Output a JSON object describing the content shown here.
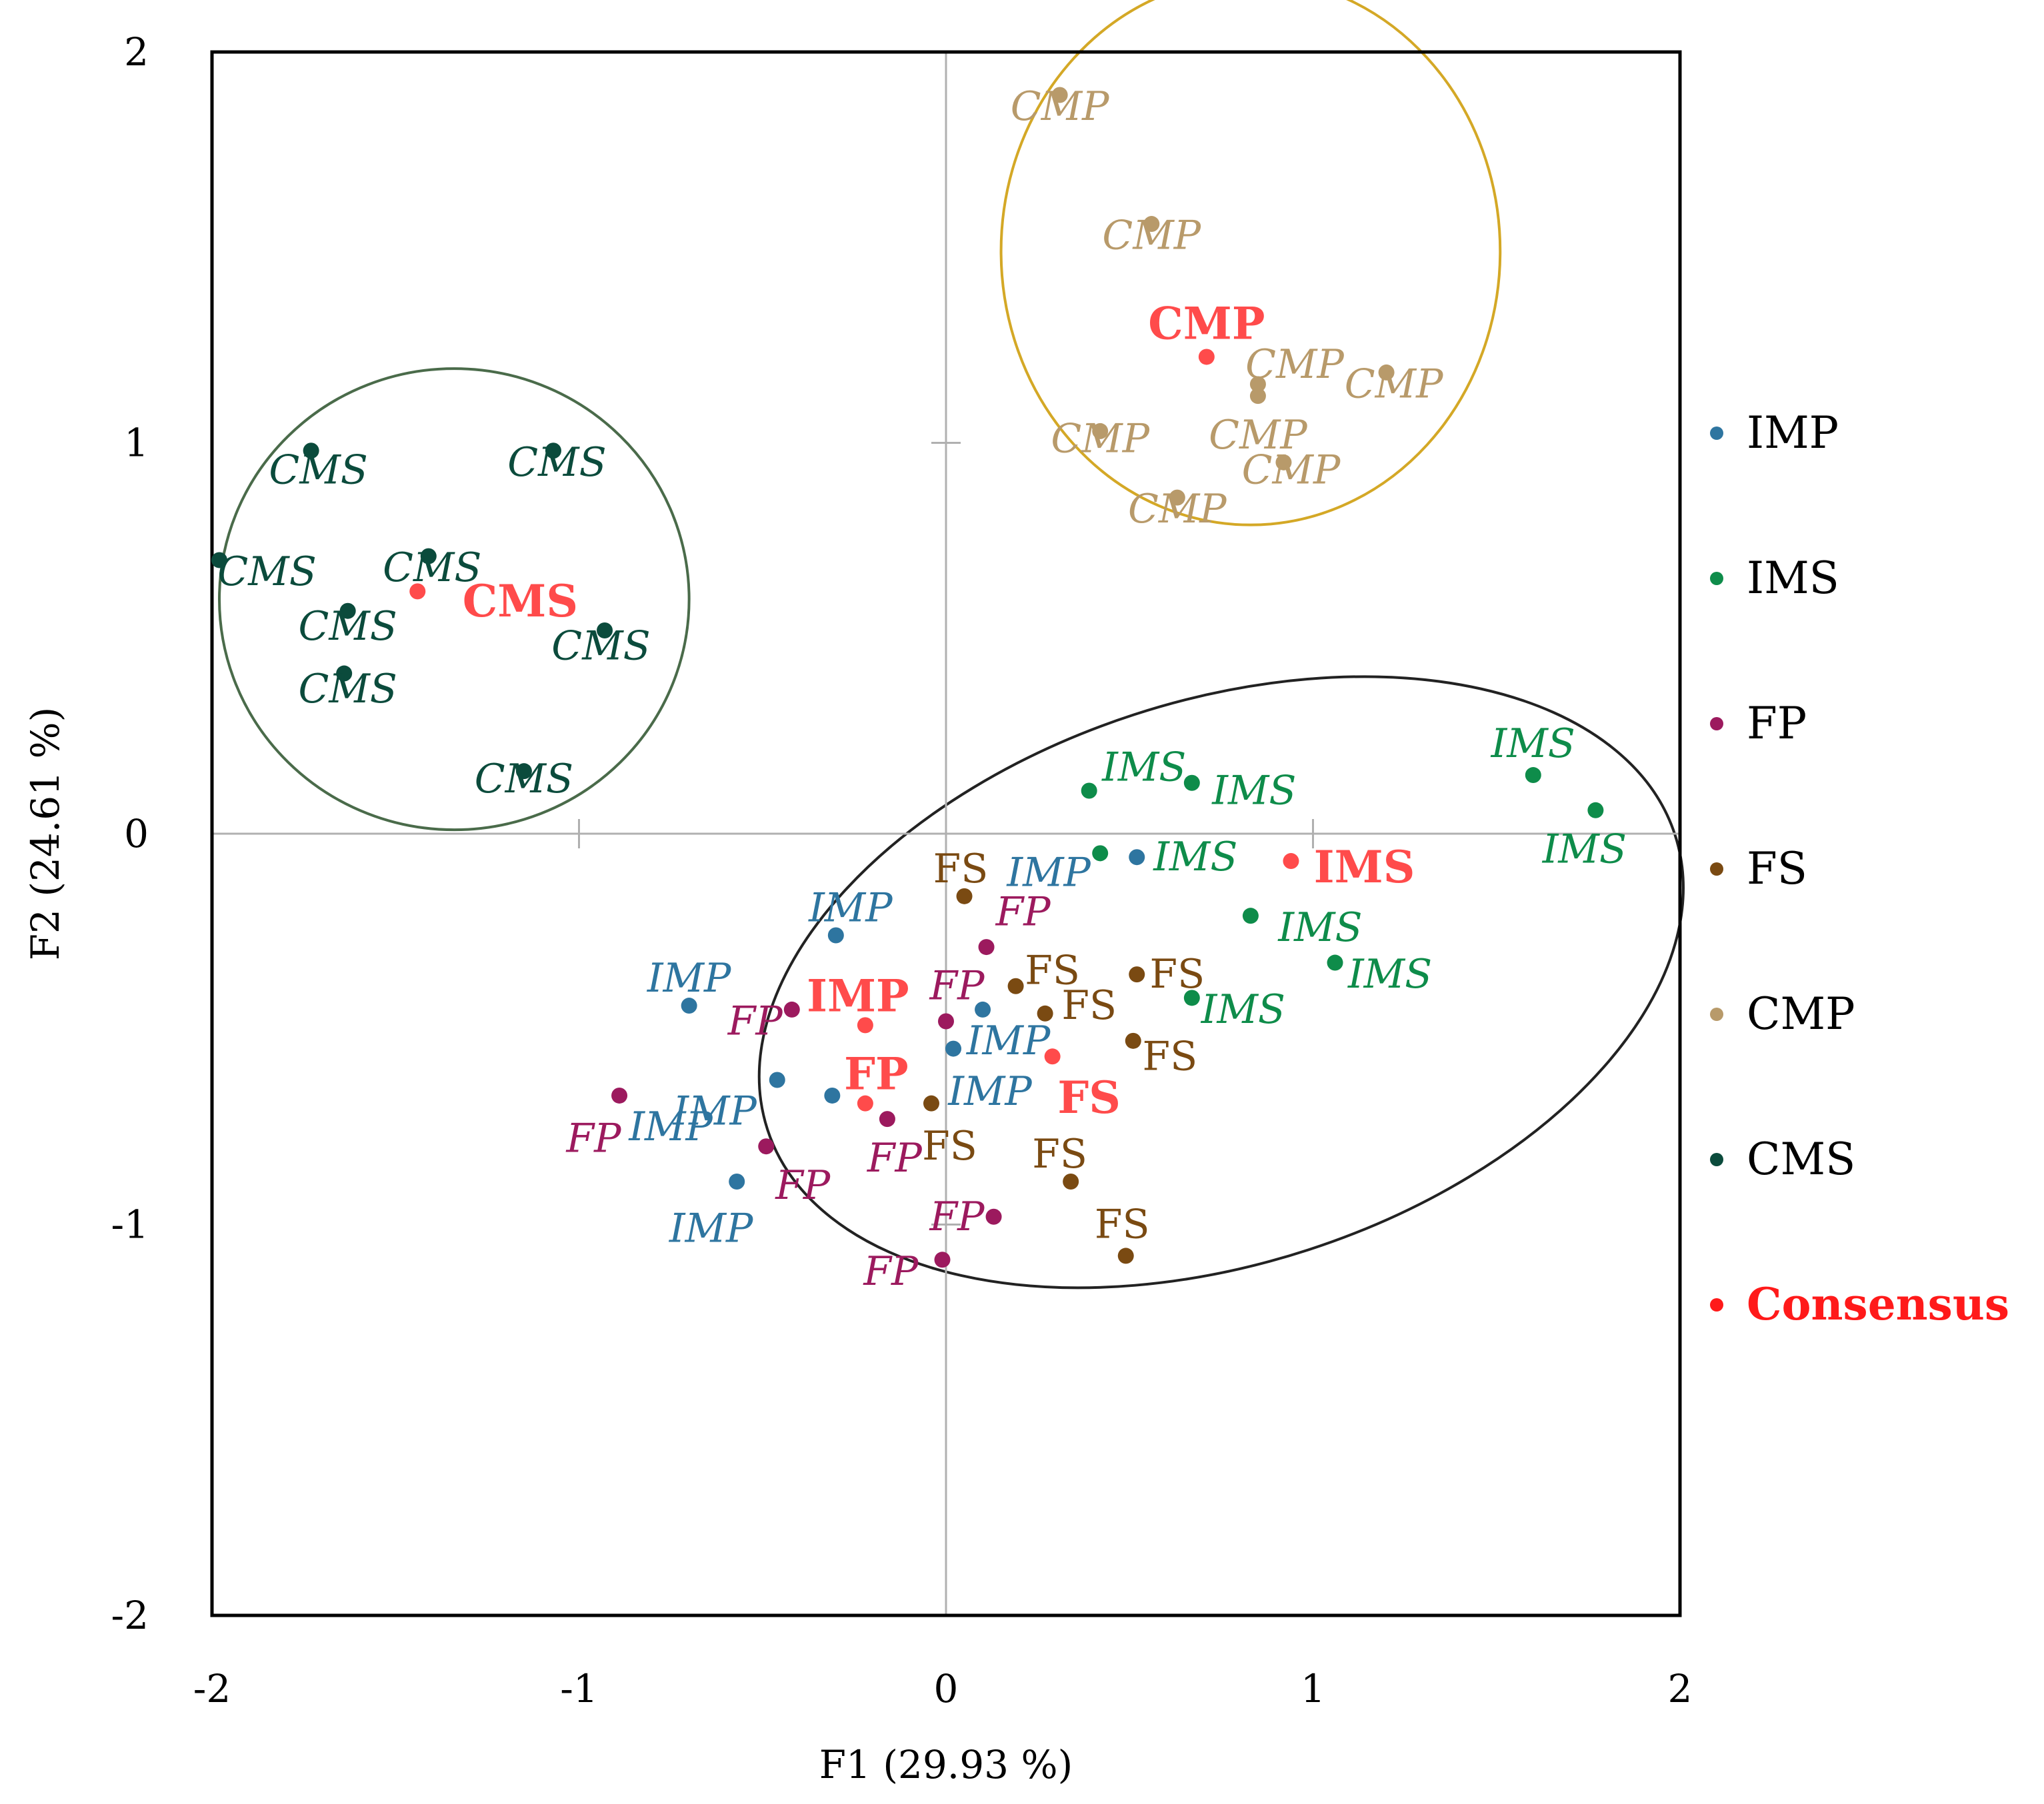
{
  "chart_data": {
    "type": "scatter",
    "title": "",
    "xlabel": "F1 (29.93 %)",
    "ylabel": "F2 (24.61 %)",
    "xlim": [
      -2,
      2
    ],
    "ylim": [
      -2,
      2
    ],
    "xticks": [
      "-2",
      "-1",
      "0",
      "1",
      "2"
    ],
    "yticks": [
      "2",
      "1",
      "0",
      "-1",
      "-2"
    ],
    "grid": false,
    "legend_position": "right",
    "series": [
      {
        "name": "IMP",
        "color": "#2e75a0",
        "italic": true,
        "points": [
          {
            "x": -0.3,
            "y": -0.26,
            "label": "IMP",
            "lx": 0.04,
            "ly": 0.07
          },
          {
            "x": -0.7,
            "y": -0.44,
            "label": "IMP",
            "lx": 0.0,
            "ly": 0.07
          },
          {
            "x": -0.46,
            "y": -0.63,
            "label": "IMP",
            "lx": -0.17,
            "ly": -0.08
          },
          {
            "x": -0.31,
            "y": -0.67,
            "label": "IMP",
            "lx": -0.44,
            "ly": -0.08
          },
          {
            "x": -0.57,
            "y": -0.89,
            "label": "IMP",
            "lx": -0.07,
            "ly": -0.12
          },
          {
            "x": 0.1,
            "y": -0.45,
            "label": "IMP",
            "lx": 0.07,
            "ly": -0.08
          },
          {
            "x": 0.02,
            "y": -0.55,
            "label": "IMP",
            "lx": 0.1,
            "ly": -0.11
          },
          {
            "x": 0.52,
            "y": -0.06,
            "label": "IMP",
            "lx": -0.24,
            "ly": -0.04
          }
        ]
      },
      {
        "name": "IMS",
        "color": "#0e8c4a",
        "italic": true,
        "points": [
          {
            "x": 0.39,
            "y": 0.11,
            "label": "IMS",
            "lx": 0.15,
            "ly": 0.06
          },
          {
            "x": 0.67,
            "y": 0.13,
            "label": "IMS",
            "lx": 0.17,
            "ly": -0.02
          },
          {
            "x": 1.6,
            "y": 0.15,
            "label": "IMS",
            "lx": 0.0,
            "ly": 0.08
          },
          {
            "x": 1.77,
            "y": 0.06,
            "label": "IMS",
            "lx": -0.03,
            "ly": -0.1
          },
          {
            "x": 0.42,
            "y": -0.05,
            "label": "IMS",
            "lx": 0.26,
            "ly": -0.01
          },
          {
            "x": 0.83,
            "y": -0.21,
            "label": "IMS",
            "lx": 0.19,
            "ly": -0.03
          },
          {
            "x": 1.06,
            "y": -0.33,
            "label": "IMS",
            "lx": 0.15,
            "ly": -0.03
          },
          {
            "x": 0.67,
            "y": -0.42,
            "label": "IMS",
            "lx": 0.14,
            "ly": -0.03
          }
        ]
      },
      {
        "name": "FP",
        "color": "#9c1a5e",
        "italic": true,
        "points": [
          {
            "x": 0.11,
            "y": -0.29,
            "label": "FP",
            "lx": 0.1,
            "ly": 0.09
          },
          {
            "x": -0.42,
            "y": -0.45,
            "label": "FP",
            "lx": -0.1,
            "ly": -0.03
          },
          {
            "x": 0.0,
            "y": -0.48,
            "label": "FP",
            "lx": 0.03,
            "ly": 0.09
          },
          {
            "x": -0.89,
            "y": -0.67,
            "label": "FP",
            "lx": -0.07,
            "ly": -0.11
          },
          {
            "x": -0.16,
            "y": -0.73,
            "label": "FP",
            "lx": 0.02,
            "ly": -0.1
          },
          {
            "x": -0.49,
            "y": -0.8,
            "label": "FP",
            "lx": 0.1,
            "ly": -0.1
          },
          {
            "x": 0.13,
            "y": -0.98,
            "label": "FP",
            "lx": -0.1,
            "ly": 0.0
          },
          {
            "x": -0.01,
            "y": -1.09,
            "label": "FP",
            "lx": -0.14,
            "ly": -0.03
          }
        ]
      },
      {
        "name": "FS",
        "color": "#7a4a12",
        "italic": false,
        "points": [
          {
            "x": 0.05,
            "y": -0.16,
            "label": "FS",
            "lx": -0.01,
            "ly": 0.07
          },
          {
            "x": 0.19,
            "y": -0.39,
            "label": "FS",
            "lx": 0.1,
            "ly": 0.04
          },
          {
            "x": 0.27,
            "y": -0.46,
            "label": "FS",
            "lx": 0.12,
            "ly": 0.02
          },
          {
            "x": 0.52,
            "y": -0.36,
            "label": "FS",
            "lx": 0.11,
            "ly": 0.0
          },
          {
            "x": 0.51,
            "y": -0.53,
            "label": "FS",
            "lx": 0.1,
            "ly": -0.04
          },
          {
            "x": -0.04,
            "y": -0.69,
            "label": "FS",
            "lx": 0.05,
            "ly": -0.11
          },
          {
            "x": 0.34,
            "y": -0.89,
            "label": "FS",
            "lx": -0.03,
            "ly": 0.07
          },
          {
            "x": 0.49,
            "y": -1.08,
            "label": "FS",
            "lx": -0.01,
            "ly": 0.08
          }
        ]
      },
      {
        "name": "CMP",
        "color": "#b89a6a",
        "italic": true,
        "points": [
          {
            "x": 0.31,
            "y": 1.89,
            "label": "CMP",
            "lx": 0.0,
            "ly": -0.03
          },
          {
            "x": 0.56,
            "y": 1.56,
            "label": "CMP",
            "lx": 0.0,
            "ly": -0.03
          },
          {
            "x": 0.85,
            "y": 1.15,
            "label": "CMP",
            "lx": 0.1,
            "ly": 0.05
          },
          {
            "x": 0.85,
            "y": 1.12,
            "label": "CMP",
            "lx": 0.0,
            "ly": -0.1
          },
          {
            "x": 1.2,
            "y": 1.18,
            "label": "CMP",
            "lx": 0.02,
            "ly": -0.03
          },
          {
            "x": 0.42,
            "y": 1.03,
            "label": "CMP",
            "lx": 0.0,
            "ly": -0.02
          },
          {
            "x": 0.92,
            "y": 0.95,
            "label": "CMP",
            "lx": 0.02,
            "ly": -0.02
          },
          {
            "x": 0.63,
            "y": 0.86,
            "label": "CMP",
            "lx": 0.0,
            "ly": -0.03
          }
        ]
      },
      {
        "name": "CMS",
        "color": "#0b4b3c",
        "italic": true,
        "points": [
          {
            "x": -1.73,
            "y": 0.98,
            "label": "CMS",
            "lx": 0.02,
            "ly": -0.05
          },
          {
            "x": -1.07,
            "y": 0.98,
            "label": "CMS",
            "lx": 0.01,
            "ly": -0.03
          },
          {
            "x": -1.98,
            "y": 0.7,
            "label": "CMS",
            "lx": 0.13,
            "ly": -0.03
          },
          {
            "x": -1.41,
            "y": 0.71,
            "label": "CMS",
            "lx": 0.01,
            "ly": -0.03
          },
          {
            "x": -1.63,
            "y": 0.57,
            "label": "CMS",
            "lx": 0.0,
            "ly": -0.04
          },
          {
            "x": -1.64,
            "y": 0.41,
            "label": "CMS",
            "lx": 0.01,
            "ly": -0.04
          },
          {
            "x": -0.93,
            "y": 0.52,
            "label": "CMS",
            "lx": -0.01,
            "ly": -0.04
          },
          {
            "x": -1.15,
            "y": 0.16,
            "label": "CMS",
            "lx": 0.0,
            "ly": -0.02
          }
        ]
      },
      {
        "name": "Consensus",
        "color": "#ff4b4b",
        "italic": false,
        "bold": true,
        "points": [
          {
            "x": -1.44,
            "y": 0.62,
            "label": "CMS",
            "lx": 0.28,
            "ly": -0.03
          },
          {
            "x": 0.71,
            "y": 1.22,
            "label": "CMP",
            "lx": 0.0,
            "ly": 0.08
          },
          {
            "x": 0.94,
            "y": -0.07,
            "label": "IMS",
            "lx": 0.2,
            "ly": -0.02
          },
          {
            "x": -0.22,
            "y": -0.49,
            "label": "IMP",
            "lx": -0.02,
            "ly": 0.07
          },
          {
            "x": -0.22,
            "y": -0.69,
            "label": "FP",
            "lx": 0.03,
            "ly": 0.07
          },
          {
            "x": 0.29,
            "y": -0.57,
            "label": "FS",
            "lx": 0.1,
            "ly": -0.11
          }
        ]
      }
    ],
    "ellipses": [
      {
        "name": "CMS group",
        "cx": -1.34,
        "cy": 0.6,
        "rx": 0.64,
        "ry": 0.59,
        "angle": 0,
        "color": "#4a6b4a"
      },
      {
        "name": "CMP group",
        "cx": 0.83,
        "cy": 1.49,
        "rx": 0.68,
        "ry": 0.7,
        "angle": 0,
        "color": "#d4a826"
      },
      {
        "name": "Main group",
        "cx": 0.75,
        "cy": -0.38,
        "rx": 1.3,
        "ry": 0.72,
        "angle": 18,
        "color": "#222222"
      }
    ],
    "legend": [
      {
        "label": "IMP",
        "color": "#2e75a0",
        "bold": false
      },
      {
        "label": "IMS",
        "color": "#0e8c4a",
        "bold": false
      },
      {
        "label": "FP",
        "color": "#9c1a5e",
        "bold": false
      },
      {
        "label": "FS",
        "color": "#7a4a12",
        "bold": false
      },
      {
        "label": "CMP",
        "color": "#b89a6a",
        "bold": false
      },
      {
        "label": "CMS",
        "color": "#0b4b3c",
        "bold": false
      },
      {
        "label": "Consensus",
        "color": "#ff1a1a",
        "bold": true
      }
    ]
  }
}
